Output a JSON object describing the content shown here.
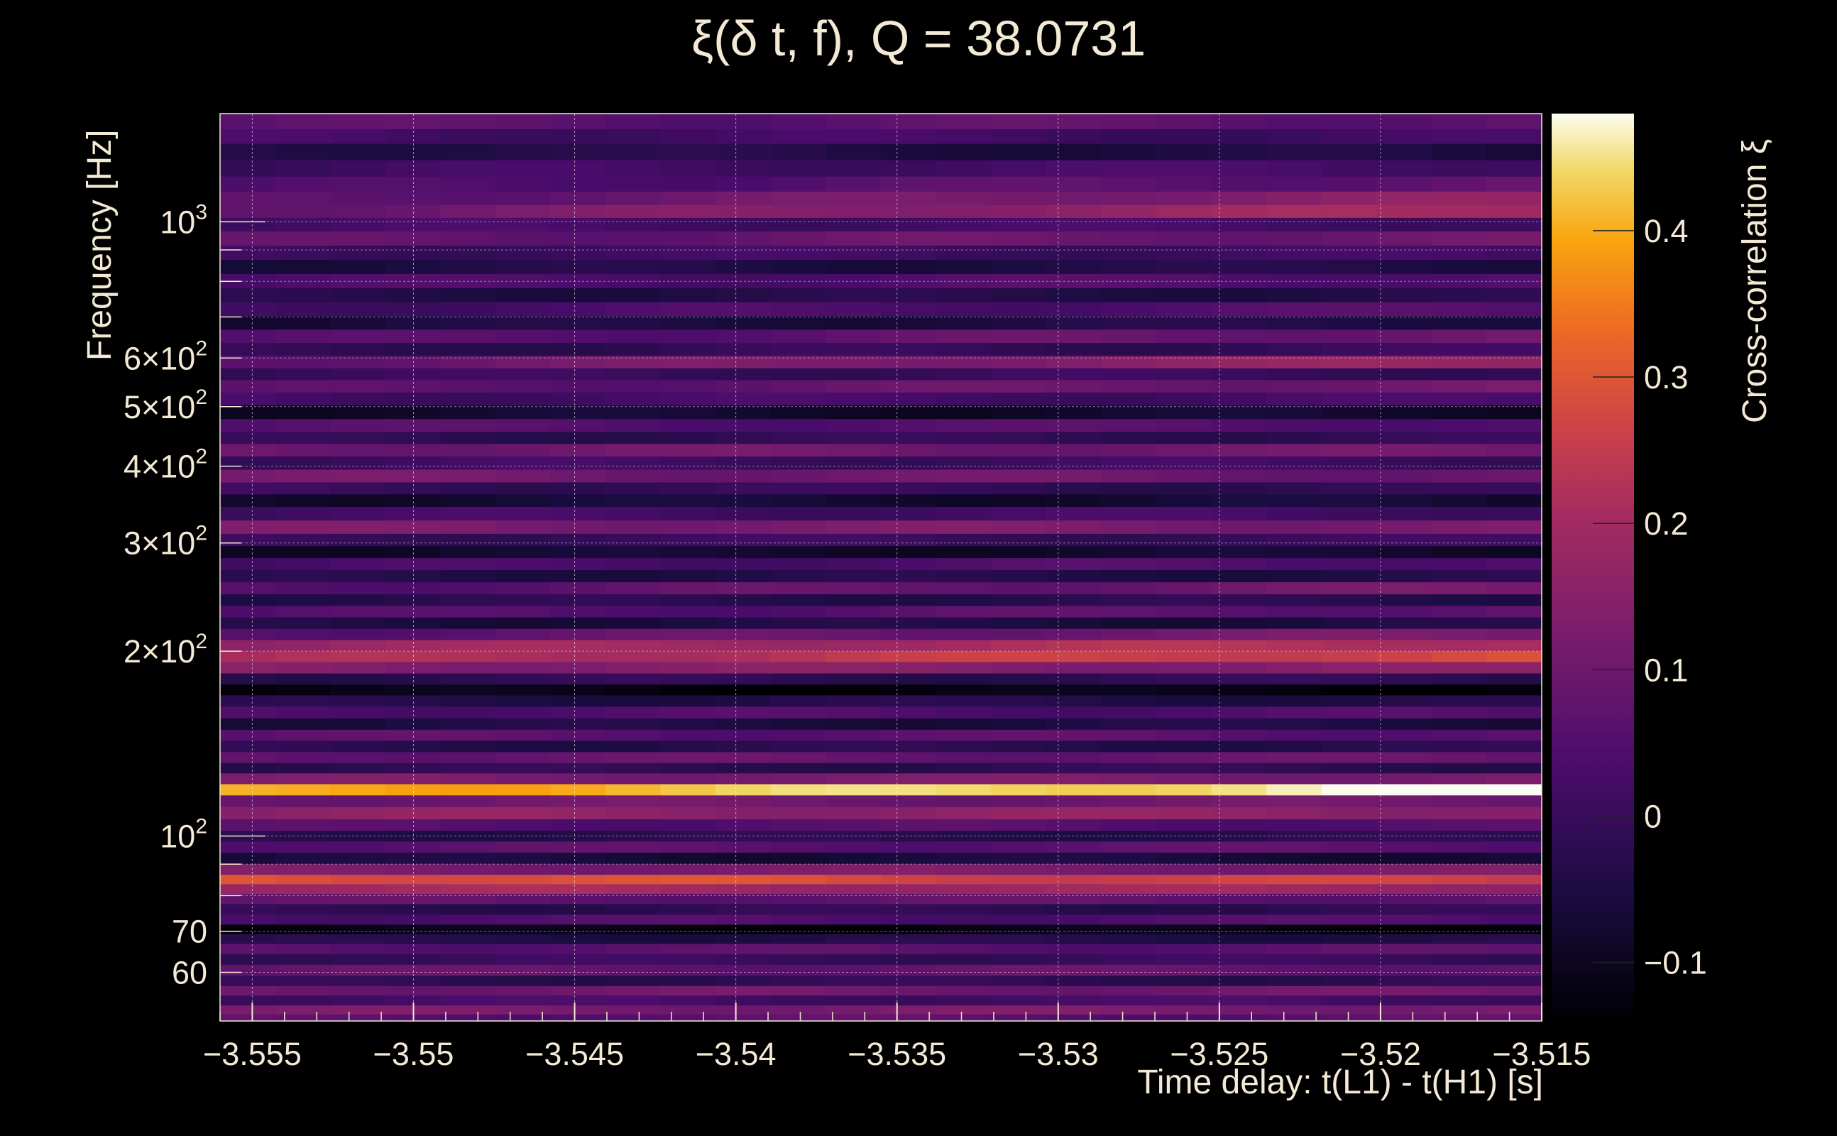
{
  "chart_data": {
    "type": "heatmap",
    "title": "ξ(δ t, f), Q = 38.0731",
    "xlabel": "Time delay: t(L1) - t(H1) [s]",
    "ylabel": "Frequency [Hz]",
    "colorbar_label": "Cross-correlation ξ",
    "xlim": [
      -3.556,
      -3.515
    ],
    "ylim": [
      50,
      1500
    ],
    "yscale": "log",
    "clim": [
      -0.14,
      0.48
    ],
    "grid": true,
    "colormap": "inferno",
    "x_ticks": [
      -3.555,
      -3.55,
      -3.545,
      -3.54,
      -3.535,
      -3.53,
      -3.525,
      -3.52,
      -3.515
    ],
    "x_tick_labels": [
      "−3.555",
      "−3.55",
      "−3.545",
      "−3.54",
      "−3.535",
      "−3.53",
      "−3.525",
      "−3.52",
      "−3.515"
    ],
    "y_ticks": [
      {
        "value": 60,
        "base": "60",
        "exp": ""
      },
      {
        "value": 70,
        "base": "70",
        "exp": ""
      },
      {
        "value": 100,
        "base": "10",
        "exp": "2"
      },
      {
        "value": 200,
        "base": "2×10",
        "exp": "2"
      },
      {
        "value": 300,
        "base": "3×10",
        "exp": "2"
      },
      {
        "value": 400,
        "base": "4×10",
        "exp": "2"
      },
      {
        "value": 500,
        "base": "5×10",
        "exp": "2"
      },
      {
        "value": 600,
        "base": "6×10",
        "exp": "2"
      },
      {
        "value": 1000,
        "base": "10",
        "exp": "3"
      }
    ],
    "colorbar_ticks": [
      -0.1,
      0,
      0.1,
      0.2,
      0.3,
      0.4
    ],
    "colorbar_tick_labels": [
      "−0.1",
      "0",
      "0.1",
      "0.2",
      "0.3",
      "0.4"
    ],
    "bands": [
      {
        "f": 1450,
        "v": 0.06,
        "dv": 0.01
      },
      {
        "f": 1380,
        "v": 0.02,
        "dv": -0.01
      },
      {
        "f": 1300,
        "v": -0.03,
        "dv": -0.03
      },
      {
        "f": 1220,
        "v": 0.01,
        "dv": 0.02
      },
      {
        "f": 1150,
        "v": 0.03,
        "dv": 0.05
      },
      {
        "f": 1090,
        "v": 0.06,
        "dv": 0.1
      },
      {
        "f": 1040,
        "v": 0.09,
        "dv": 0.12
      },
      {
        "f": 990,
        "v": 0.02,
        "dv": 0.0
      },
      {
        "f": 940,
        "v": 0.07,
        "dv": 0.03
      },
      {
        "f": 890,
        "v": 0.01,
        "dv": 0.0
      },
      {
        "f": 845,
        "v": -0.05,
        "dv": 0.01
      },
      {
        "f": 800,
        "v": 0.03,
        "dv": 0.02
      },
      {
        "f": 760,
        "v": -0.04,
        "dv": 0.0
      },
      {
        "f": 720,
        "v": 0.02,
        "dv": 0.03
      },
      {
        "f": 685,
        "v": -0.06,
        "dv": 0.02
      },
      {
        "f": 650,
        "v": 0.04,
        "dv": 0.06
      },
      {
        "f": 620,
        "v": -0.02,
        "dv": 0.02
      },
      {
        "f": 590,
        "v": 0.08,
        "dv": 0.1
      },
      {
        "f": 565,
        "v": 0.0,
        "dv": 0.0
      },
      {
        "f": 540,
        "v": 0.05,
        "dv": 0.06
      },
      {
        "f": 515,
        "v": 0.02,
        "dv": 0.0
      },
      {
        "f": 490,
        "v": -0.08,
        "dv": 0.0
      },
      {
        "f": 465,
        "v": 0.05,
        "dv": 0.0
      },
      {
        "f": 445,
        "v": -0.02,
        "dv": 0.01
      },
      {
        "f": 425,
        "v": 0.1,
        "dv": 0.0
      },
      {
        "f": 405,
        "v": 0.01,
        "dv": 0.0
      },
      {
        "f": 385,
        "v": 0.11,
        "dv": -0.02
      },
      {
        "f": 368,
        "v": 0.0,
        "dv": -0.02
      },
      {
        "f": 352,
        "v": -0.07,
        "dv": 0.0
      },
      {
        "f": 335,
        "v": 0.02,
        "dv": 0.0
      },
      {
        "f": 318,
        "v": 0.12,
        "dv": 0.0
      },
      {
        "f": 303,
        "v": 0.0,
        "dv": 0.0
      },
      {
        "f": 290,
        "v": -0.08,
        "dv": 0.0
      },
      {
        "f": 277,
        "v": 0.02,
        "dv": 0.03
      },
      {
        "f": 265,
        "v": -0.04,
        "dv": 0.0
      },
      {
        "f": 253,
        "v": 0.05,
        "dv": 0.06
      },
      {
        "f": 242,
        "v": -0.03,
        "dv": 0.0
      },
      {
        "f": 232,
        "v": 0.04,
        "dv": 0.03
      },
      {
        "f": 222,
        "v": -0.05,
        "dv": 0.0
      },
      {
        "f": 213,
        "v": 0.06,
        "dv": 0.06
      },
      {
        "f": 204,
        "v": 0.18,
        "dv": 0.05
      },
      {
        "f": 196,
        "v": 0.2,
        "dv": 0.08
      },
      {
        "f": 188,
        "v": 0.14,
        "dv": 0.0
      },
      {
        "f": 180,
        "v": -0.02,
        "dv": 0.0
      },
      {
        "f": 173,
        "v": -0.12,
        "dv": 0.0
      },
      {
        "f": 166,
        "v": -0.04,
        "dv": 0.0
      },
      {
        "f": 159,
        "v": 0.04,
        "dv": 0.0
      },
      {
        "f": 152,
        "v": -0.05,
        "dv": 0.0
      },
      {
        "f": 146,
        "v": 0.06,
        "dv": 0.0
      },
      {
        "f": 140,
        "v": -0.03,
        "dv": 0.0
      },
      {
        "f": 134,
        "v": 0.08,
        "dv": 0.0
      },
      {
        "f": 129,
        "v": -0.02,
        "dv": 0.0
      },
      {
        "f": 124,
        "v": 0.12,
        "dv": 0.0
      },
      {
        "f": 119,
        "v": 0.39,
        "dv": 0.09
      },
      {
        "f": 114,
        "v": 0.1,
        "dv": 0.0
      },
      {
        "f": 109,
        "v": 0.16,
        "dv": 0.0
      },
      {
        "f": 104,
        "v": 0.05,
        "dv": 0.0
      },
      {
        "f": 100,
        "v": -0.03,
        "dv": 0.0
      },
      {
        "f": 96,
        "v": 0.06,
        "dv": 0.0
      },
      {
        "f": 92,
        "v": -0.06,
        "dv": 0.0
      },
      {
        "f": 88,
        "v": 0.12,
        "dv": 0.0
      },
      {
        "f": 85,
        "v": 0.3,
        "dv": -0.05
      },
      {
        "f": 82,
        "v": 0.2,
        "dv": -0.02
      },
      {
        "f": 79,
        "v": 0.07,
        "dv": 0.0
      },
      {
        "f": 76,
        "v": -0.02,
        "dv": 0.0
      },
      {
        "f": 73,
        "v": 0.04,
        "dv": 0.0
      },
      {
        "f": 70.5,
        "v": -0.12,
        "dv": 0.0
      },
      {
        "f": 68,
        "v": -0.04,
        "dv": 0.0
      },
      {
        "f": 65.5,
        "v": 0.06,
        "dv": 0.0
      },
      {
        "f": 63,
        "v": 0.0,
        "dv": 0.0
      },
      {
        "f": 60.5,
        "v": 0.08,
        "dv": 0.0
      },
      {
        "f": 58,
        "v": -0.02,
        "dv": 0.0
      },
      {
        "f": 56,
        "v": 0.1,
        "dv": 0.0
      },
      {
        "f": 54,
        "v": 0.02,
        "dv": 0.0
      },
      {
        "f": 52,
        "v": 0.12,
        "dv": 0.0
      },
      {
        "f": 50.5,
        "v": 0.06,
        "dv": 0.0
      }
    ]
  }
}
